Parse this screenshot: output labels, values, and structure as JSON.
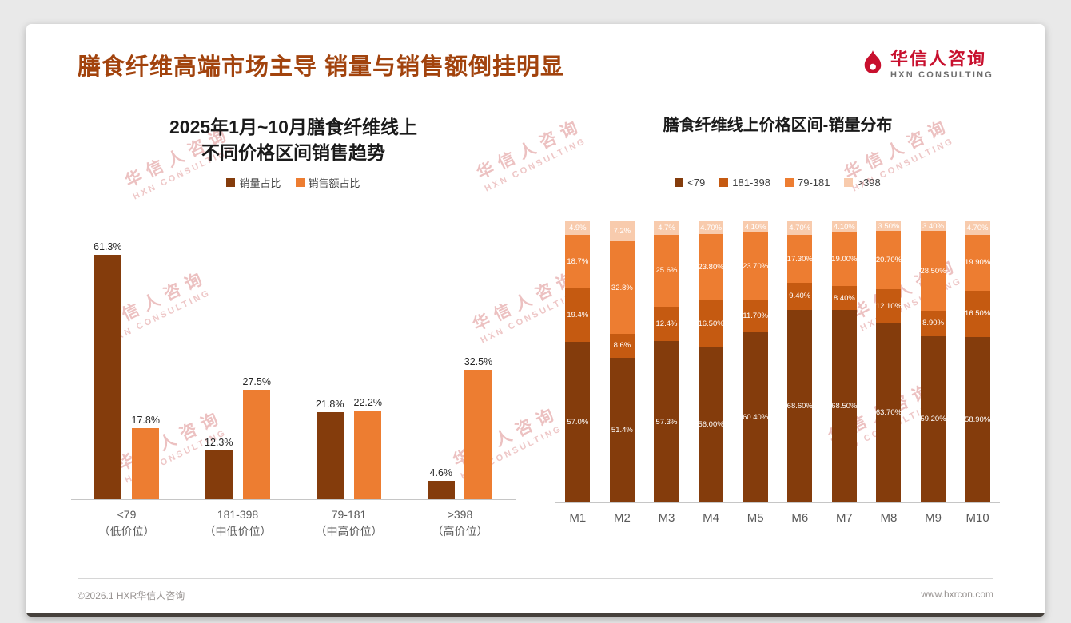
{
  "header": {
    "title": "膳食纤维高端市场主导 销量与销售额倒挂明显",
    "logo": {
      "name": "华信人咨询",
      "subtitle": "HXN CONSULTING"
    }
  },
  "watermark": {
    "line1": "华信人咨询",
    "line2": "HXN CONSULTING"
  },
  "footer": {
    "copyright": "©2026.1 HXR华信人咨询",
    "website": "www.hxrcon.com"
  },
  "colors": {
    "title_brown": "#A2430D",
    "brand_red": "#C8102E",
    "series_dark": "#843C0C",
    "series_mid": "#C55A11",
    "series_orange": "#ED7D31",
    "series_light": "#F8CBAD"
  },
  "chart_data": [
    {
      "type": "bar",
      "title": "2025年1月~10月膳食纤维线上不同价格区间销售趋势",
      "title_lines": [
        "2025年1月~10月膳食纤维线上",
        "不同价格区间销售趋势"
      ],
      "categories": [
        [
          "<79",
          "（低价位）"
        ],
        [
          "181-398",
          "（中低价位）"
        ],
        [
          "79-181",
          "（中高价位）"
        ],
        [
          ">398",
          "（高价位）"
        ]
      ],
      "series": [
        {
          "name": "销量占比",
          "color": "#843C0C",
          "values": [
            61.3,
            12.3,
            21.8,
            4.6
          ],
          "labels": [
            "61.3%",
            "12.3%",
            "21.8%",
            "4.6%"
          ]
        },
        {
          "name": "销售额占比",
          "color": "#ED7D31",
          "values": [
            17.8,
            27.5,
            22.2,
            32.5
          ],
          "labels": [
            "17.8%",
            "27.5%",
            "22.2%",
            "32.5%"
          ]
        }
      ],
      "unit": "%",
      "ylim": [
        0,
        67
      ],
      "grid": false,
      "legend_position": "top"
    },
    {
      "type": "bar",
      "stacked": true,
      "title": "膳食纤维线上价格区间-销量分布",
      "categories": [
        "M1",
        "M2",
        "M3",
        "M4",
        "M5",
        "M6",
        "M7",
        "M8",
        "M9",
        "M10"
      ],
      "series": [
        {
          "name": "<79",
          "color": "#843C0C",
          "values": [
            57.0,
            51.4,
            57.3,
            56.0,
            60.4,
            68.6,
            68.5,
            63.7,
            59.2,
            58.9
          ],
          "labels": [
            "57.0%",
            "51.4%",
            "57.3%",
            "56.00%",
            "60.40%",
            "68.60%",
            "68.50%",
            "63.70%",
            "59.20%",
            "58.90%"
          ]
        },
        {
          "name": "181-398",
          "color": "#C55A11",
          "values": [
            19.4,
            8.6,
            12.4,
            16.5,
            11.7,
            9.4,
            8.4,
            12.1,
            8.9,
            16.5
          ],
          "labels": [
            "19.4%",
            "8.6%",
            "12.4%",
            "16.50%",
            "11.70%",
            "9.40%",
            "8.40%",
            "12.10%",
            "8.90%",
            "16.50%"
          ]
        },
        {
          "name": "79-181",
          "color": "#ED7D31",
          "values": [
            18.7,
            32.8,
            25.6,
            23.8,
            23.7,
            17.3,
            19.0,
            20.7,
            28.5,
            19.9
          ],
          "labels": [
            "18.7%",
            "32.8%",
            "25.6%",
            "23.80%",
            "23.70%",
            "17.30%",
            "19.00%",
            "20.70%",
            "28.50%",
            "19.90%"
          ]
        },
        {
          "name": ">398",
          "color": "#F8CBAD",
          "values": [
            4.9,
            7.2,
            4.7,
            4.7,
            4.1,
            4.7,
            4.1,
            3.5,
            3.4,
            4.7
          ],
          "labels": [
            "4.9%",
            "7.2%",
            "4.7%",
            "4.70%",
            "4.10%",
            "4.70%",
            "4.10%",
            "3.50%",
            "3.40%",
            "4.70%"
          ]
        }
      ],
      "unit": "%",
      "ylim": [
        0,
        100
      ],
      "grid": false,
      "legend_position": "top"
    }
  ]
}
